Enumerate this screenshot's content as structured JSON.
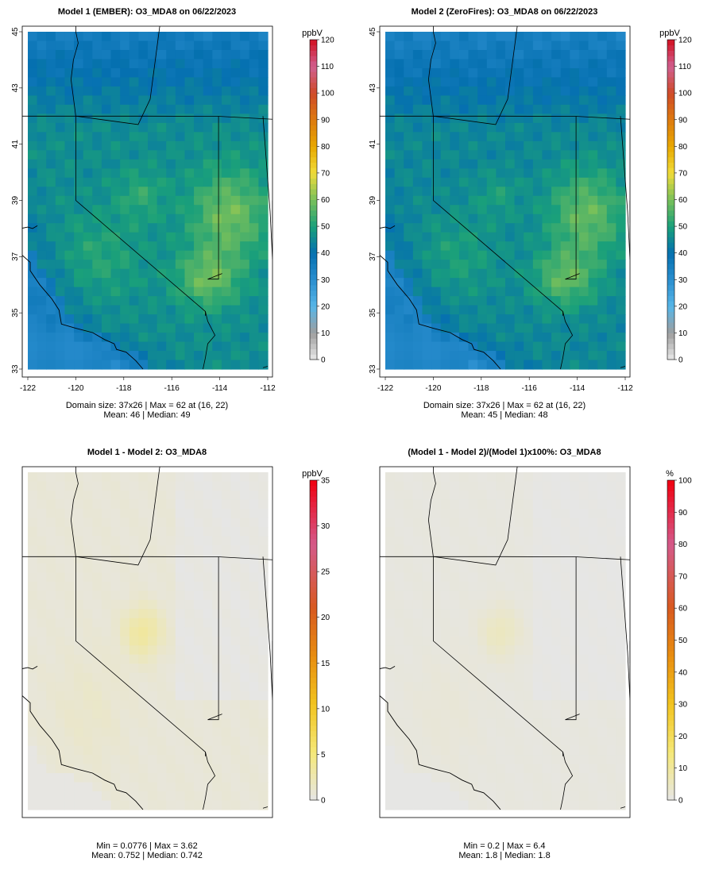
{
  "chart_data": [
    {
      "type": "heatmap",
      "title": "Model 1 (EMBER): O3_MDA8 on 06/22/2023",
      "colorbar_title": "ppbV",
      "colorbar_ticks": [
        0,
        10,
        20,
        30,
        40,
        50,
        60,
        70,
        80,
        90,
        100,
        110,
        120
      ],
      "colorbar_range": [
        0,
        120
      ],
      "x_ticks": [
        "-122",
        "-120",
        "-118",
        "-116",
        "-114",
        "-112"
      ],
      "y_ticks": [
        "33",
        "35",
        "37",
        "39",
        "41",
        "43",
        "45"
      ],
      "xlim": [
        -122,
        -112
      ],
      "ylim": [
        33,
        45
      ],
      "grid_size": "37x26",
      "stats": [
        "Domain size: 37x26 | Max = 62 at (16, 22)",
        "Mean: 46 |  Median: 49"
      ],
      "mean": 46,
      "median": 49,
      "max": 62
    },
    {
      "type": "heatmap",
      "title": "Model 2 (ZeroFires): O3_MDA8 on 06/22/2023",
      "colorbar_title": "ppbV",
      "colorbar_ticks": [
        0,
        10,
        20,
        30,
        40,
        50,
        60,
        70,
        80,
        90,
        100,
        110,
        120
      ],
      "colorbar_range": [
        0,
        120
      ],
      "x_ticks": [
        "-122",
        "-120",
        "-118",
        "-116",
        "-114",
        "-112"
      ],
      "y_ticks": [
        "33",
        "35",
        "37",
        "39",
        "41",
        "43",
        "45"
      ],
      "xlim": [
        -122,
        -112
      ],
      "ylim": [
        33,
        45
      ],
      "grid_size": "37x26",
      "stats": [
        "Domain size: 37x26 | Max = 62 at (16, 22)",
        "Mean: 45 |  Median: 48"
      ],
      "mean": 45,
      "median": 48,
      "max": 62
    },
    {
      "type": "heatmap",
      "title": "Model 1 - Model 2: O3_MDA8",
      "colorbar_title": "ppbV",
      "colorbar_ticks": [
        0,
        5,
        10,
        15,
        20,
        25,
        30,
        35
      ],
      "colorbar_range": [
        0,
        35
      ],
      "stats": [
        "Min = 0.0776 | Max = 3.62",
        "Mean: 0.752 |  Median: 0.742"
      ],
      "min": 0.0776,
      "max": 3.62,
      "mean": 0.752,
      "median": 0.742
    },
    {
      "type": "heatmap",
      "title": "(Model 1 - Model 2)/(Model 1)x100%: O3_MDA8",
      "colorbar_title": "%",
      "colorbar_ticks": [
        0,
        10,
        20,
        30,
        40,
        50,
        60,
        70,
        80,
        90,
        100
      ],
      "colorbar_range": [
        0,
        100
      ],
      "stats": [
        "Min = 0.2 | Max = 6.4",
        "Mean: 1.8 |  Median: 1.8"
      ],
      "min": 0.2,
      "max": 6.4,
      "mean": 1.8,
      "median": 1.8
    }
  ]
}
